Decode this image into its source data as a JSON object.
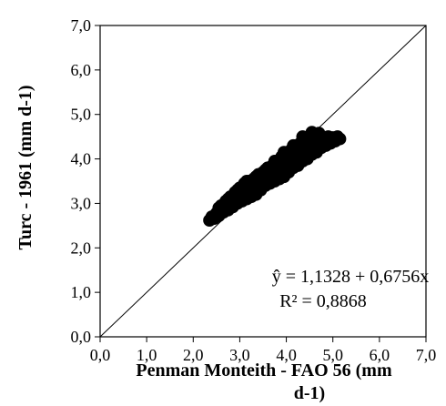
{
  "chart_data": {
    "type": "scatter",
    "xlabel_lines": [
      "Penman Monteith - FAO 56 (mm",
      "d-1)"
    ],
    "ylabel": "Turc - 1961 (mm d-1)",
    "xlim": [
      0,
      7
    ],
    "ylim": [
      0,
      7
    ],
    "x_ticks": [
      "0,0",
      "1,0",
      "2,0",
      "3,0",
      "4,0",
      "5,0",
      "6,0",
      "7,0"
    ],
    "y_ticks": [
      "0,0",
      "1,0",
      "2,0",
      "3,0",
      "4,0",
      "5,0",
      "6,0",
      "7,0"
    ],
    "grid": false,
    "legend": "none",
    "reference_line": {
      "name": "1:1 line",
      "x": [
        0,
        7
      ],
      "y": [
        0,
        7
      ]
    },
    "regression": {
      "intercept": 1.1328,
      "slope": 0.6756
    },
    "annotations": [
      "ŷ = 1,1328 + 0,6756x",
      "R² = 0,8868"
    ],
    "point_color": "#000000",
    "series": [
      {
        "points": [
          [
            2.35,
            2.62
          ],
          [
            2.4,
            2.7
          ],
          [
            2.45,
            2.66
          ],
          [
            2.5,
            2.78
          ],
          [
            2.55,
            2.72
          ],
          [
            2.6,
            2.85
          ],
          [
            2.6,
            2.95
          ],
          [
            2.65,
            2.8
          ],
          [
            2.7,
            2.9
          ],
          [
            2.7,
            3.05
          ],
          [
            2.75,
            2.85
          ],
          [
            2.8,
            3.0
          ],
          [
            2.8,
            3.15
          ],
          [
            2.85,
            2.92
          ],
          [
            2.9,
            3.1
          ],
          [
            2.9,
            3.25
          ],
          [
            2.95,
            3.0
          ],
          [
            3.0,
            3.2
          ],
          [
            3.0,
            3.35
          ],
          [
            3.05,
            3.05
          ],
          [
            3.1,
            3.25
          ],
          [
            3.1,
            3.45
          ],
          [
            3.15,
            3.1
          ],
          [
            3.2,
            3.3
          ],
          [
            3.2,
            3.5
          ],
          [
            3.25,
            3.15
          ],
          [
            3.3,
            3.4
          ],
          [
            3.3,
            3.55
          ],
          [
            3.35,
            3.2
          ],
          [
            3.4,
            3.45
          ],
          [
            3.4,
            3.65
          ],
          [
            3.45,
            3.3
          ],
          [
            3.5,
            3.55
          ],
          [
            3.5,
            3.7
          ],
          [
            3.55,
            3.4
          ],
          [
            3.6,
            3.6
          ],
          [
            3.6,
            3.8
          ],
          [
            3.65,
            3.45
          ],
          [
            3.7,
            3.65
          ],
          [
            3.7,
            3.85
          ],
          [
            3.75,
            3.5
          ],
          [
            3.8,
            3.75
          ],
          [
            3.8,
            3.95
          ],
          [
            3.85,
            3.55
          ],
          [
            3.9,
            3.85
          ],
          [
            3.9,
            4.05
          ],
          [
            3.95,
            3.6
          ],
          [
            4.0,
            3.9
          ],
          [
            4.0,
            4.1
          ],
          [
            4.05,
            3.7
          ],
          [
            4.1,
            3.95
          ],
          [
            4.1,
            4.2
          ],
          [
            4.15,
            3.8
          ],
          [
            4.2,
            4.05
          ],
          [
            4.2,
            4.3
          ],
          [
            4.25,
            3.85
          ],
          [
            4.3,
            4.1
          ],
          [
            4.3,
            4.35
          ],
          [
            4.35,
            3.95
          ],
          [
            4.4,
            4.2
          ],
          [
            4.4,
            4.4
          ],
          [
            4.45,
            4.0
          ],
          [
            4.5,
            4.25
          ],
          [
            4.5,
            4.45
          ],
          [
            4.55,
            4.1
          ],
          [
            4.6,
            4.3
          ],
          [
            4.6,
            4.5
          ],
          [
            4.65,
            4.15
          ],
          [
            4.7,
            4.4
          ],
          [
            4.7,
            4.58
          ],
          [
            4.75,
            4.25
          ],
          [
            4.8,
            4.45
          ],
          [
            4.85,
            4.3
          ],
          [
            4.9,
            4.5
          ],
          [
            4.95,
            4.35
          ],
          [
            5.0,
            4.48
          ],
          [
            5.05,
            4.4
          ],
          [
            5.1,
            4.5
          ],
          [
            5.15,
            4.45
          ],
          [
            2.55,
            2.9
          ],
          [
            2.75,
            3.1
          ],
          [
            2.95,
            3.3
          ],
          [
            3.15,
            3.5
          ],
          [
            3.35,
            3.6
          ],
          [
            3.55,
            3.75
          ],
          [
            3.75,
            3.95
          ],
          [
            3.95,
            4.15
          ],
          [
            4.15,
            4.3
          ],
          [
            4.35,
            4.5
          ],
          [
            4.55,
            4.6
          ],
          [
            3.0,
            3.1
          ],
          [
            3.2,
            3.2
          ],
          [
            3.4,
            3.35
          ],
          [
            3.6,
            3.5
          ],
          [
            3.8,
            3.6
          ],
          [
            4.0,
            3.75
          ],
          [
            4.2,
            3.9
          ],
          [
            4.4,
            4.05
          ],
          [
            4.6,
            4.2
          ],
          [
            4.8,
            4.3
          ],
          [
            3.25,
            3.35
          ],
          [
            3.45,
            3.5
          ],
          [
            3.65,
            3.7
          ],
          [
            3.85,
            3.8
          ],
          [
            4.05,
            3.95
          ],
          [
            4.25,
            4.15
          ],
          [
            4.45,
            4.3
          ],
          [
            2.85,
            3.05
          ],
          [
            3.05,
            3.2
          ],
          [
            3.7,
            3.55
          ],
          [
            3.9,
            3.7
          ]
        ]
      }
    ]
  }
}
